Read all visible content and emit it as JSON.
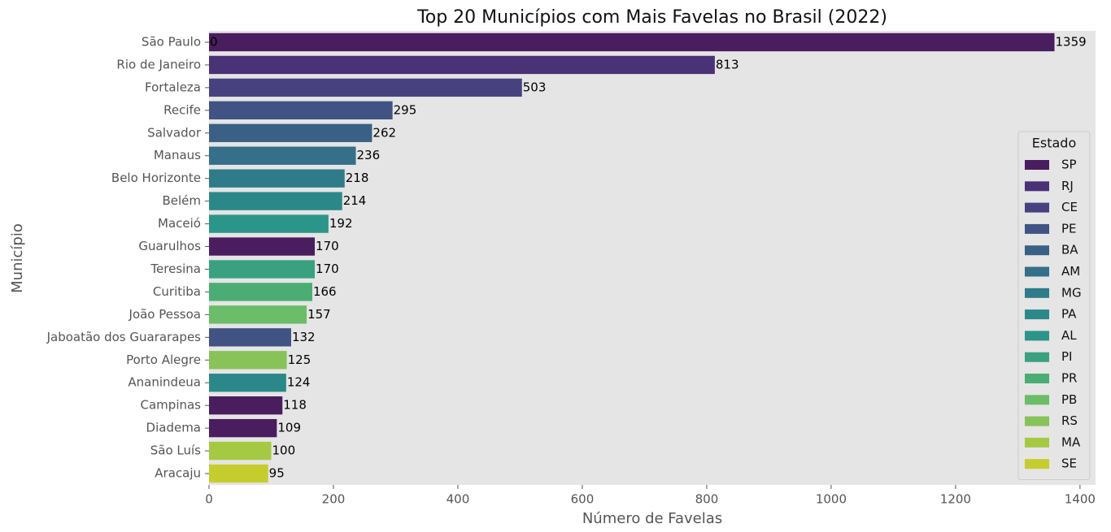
{
  "chart_data": {
    "type": "bar",
    "orientation": "horizontal",
    "title": "Top 20 Municípios com Mais Favelas no Brasil (2022)",
    "xlabel": "Número de Favelas",
    "ylabel": "Município",
    "categories": [
      "São Paulo",
      "Rio de Janeiro",
      "Fortaleza",
      "Recife",
      "Salvador",
      "Manaus",
      "Belo Horizonte",
      "Belém",
      "Maceió",
      "Guarulhos",
      "Teresina",
      "Curitiba",
      "João Pessoa",
      "Jaboatão dos Guararapes",
      "Porto Alegre",
      "Ananindeua",
      "Campinas",
      "Diadema",
      "São Luís",
      "Aracaju"
    ],
    "values": [
      1359,
      813,
      503,
      295,
      262,
      236,
      218,
      214,
      192,
      170,
      170,
      166,
      157,
      132,
      125,
      124,
      118,
      109,
      100,
      95
    ],
    "hue": [
      "SP",
      "RJ",
      "CE",
      "PE",
      "BA",
      "AM",
      "MG",
      "PA",
      "AL",
      "SP",
      "PI",
      "PR",
      "PB",
      "PE",
      "RS",
      "PA",
      "SP",
      "SP",
      "MA",
      "SE"
    ],
    "annotations": [
      {
        "value": 0
      }
    ],
    "xlim": [
      0,
      1425
    ],
    "xticks": [
      0,
      200,
      400,
      600,
      800,
      1000,
      1200,
      1400
    ],
    "grid": false,
    "legend": {
      "title": "Estado",
      "location": "right",
      "entries": [
        {
          "name": "SP",
          "color": "#4a1d5f"
        },
        {
          "name": "RJ",
          "color": "#4a3277"
        },
        {
          "name": "CE",
          "color": "#47427f"
        },
        {
          "name": "PE",
          "color": "#405383"
        },
        {
          "name": "BA",
          "color": "#3a6185"
        },
        {
          "name": "AM",
          "color": "#356f89"
        },
        {
          "name": "MG",
          "color": "#2f7b89"
        },
        {
          "name": "PA",
          "color": "#2c8888"
        },
        {
          "name": "AL",
          "color": "#2b958a"
        },
        {
          "name": "PI",
          "color": "#39a180"
        },
        {
          "name": "PR",
          "color": "#4bad74"
        },
        {
          "name": "PB",
          "color": "#6bbd69"
        },
        {
          "name": "RS",
          "color": "#88c35a"
        },
        {
          "name": "MA",
          "color": "#a6c943"
        },
        {
          "name": "SE",
          "color": "#c5cd2e"
        }
      ]
    }
  }
}
